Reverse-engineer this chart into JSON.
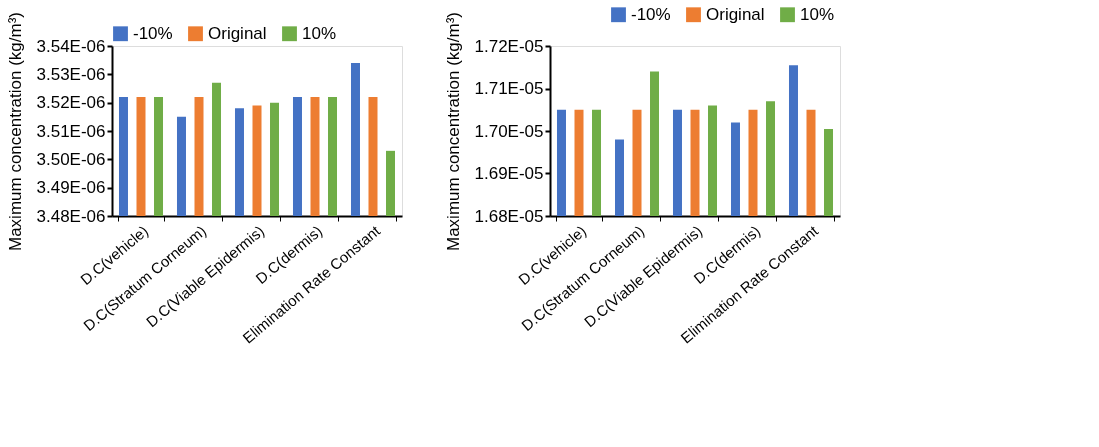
{
  "chart_data": [
    {
      "type": "bar",
      "ylabel": "Maximum concentration (kg/m³)",
      "categories": [
        "D.C(vehicle)",
        "D.C(Stratum Corneum)",
        "D.C(Viable Epidermis)",
        "D.C(dermis)",
        "Elimination Rate Constant"
      ],
      "series": [
        {
          "name": "-10%",
          "color": "#4472c4",
          "values": [
            3.522e-06,
            3.515e-06,
            3.518e-06,
            3.522e-06,
            3.534e-06
          ]
        },
        {
          "name": "Original",
          "color": "#ed7d31",
          "values": [
            3.522e-06,
            3.522e-06,
            3.519e-06,
            3.522e-06,
            3.522e-06
          ]
        },
        {
          "name": "10%",
          "color": "#70ad47",
          "values": [
            3.522e-06,
            3.527e-06,
            3.52e-06,
            3.522e-06,
            3.503e-06
          ]
        }
      ],
      "ylim": [
        3.48e-06,
        3.54e-06
      ],
      "yticks": [
        {
          "value": 3.48e-06,
          "label": "3.48E-06"
        },
        {
          "value": 3.49e-06,
          "label": "3.49E-06"
        },
        {
          "value": 3.5e-06,
          "label": "3.50E-06"
        },
        {
          "value": 3.51e-06,
          "label": "3.51E-06"
        },
        {
          "value": 3.52e-06,
          "label": "3.52E-06"
        },
        {
          "value": 3.53e-06,
          "label": "3.53E-06"
        },
        {
          "value": 3.54e-06,
          "label": "3.54E-06"
        }
      ],
      "legend": "top",
      "grid": false
    },
    {
      "type": "bar",
      "ylabel": "Maximum concentration (kg/m³)",
      "categories": [
        "D.C(vehicle)",
        "D.C(Stratum Corneum)",
        "D.C(Viable Epidermis)",
        "D.C(dermis)",
        "Elimination Rate Constant"
      ],
      "series": [
        {
          "name": "-10%",
          "color": "#4472c4",
          "values": [
            1.705e-05,
            1.698e-05,
            1.705e-05,
            1.702e-05,
            1.7155e-05
          ]
        },
        {
          "name": "Original",
          "color": "#ed7d31",
          "values": [
            1.705e-05,
            1.705e-05,
            1.705e-05,
            1.705e-05,
            1.705e-05
          ]
        },
        {
          "name": "10%",
          "color": "#70ad47",
          "values": [
            1.705e-05,
            1.714e-05,
            1.706e-05,
            1.707e-05,
            1.7005e-05
          ]
        }
      ],
      "ylim": [
        1.68e-05,
        1.72e-05
      ],
      "yticks": [
        {
          "value": 1.68e-05,
          "label": "1.68E-05"
        },
        {
          "value": 1.69e-05,
          "label": "1.69E-05"
        },
        {
          "value": 1.7e-05,
          "label": "1.70E-05"
        },
        {
          "value": 1.71e-05,
          "label": "1.71E-05"
        },
        {
          "value": 1.72e-05,
          "label": "1.72E-05"
        }
      ],
      "legend": "top right",
      "grid": false
    }
  ]
}
